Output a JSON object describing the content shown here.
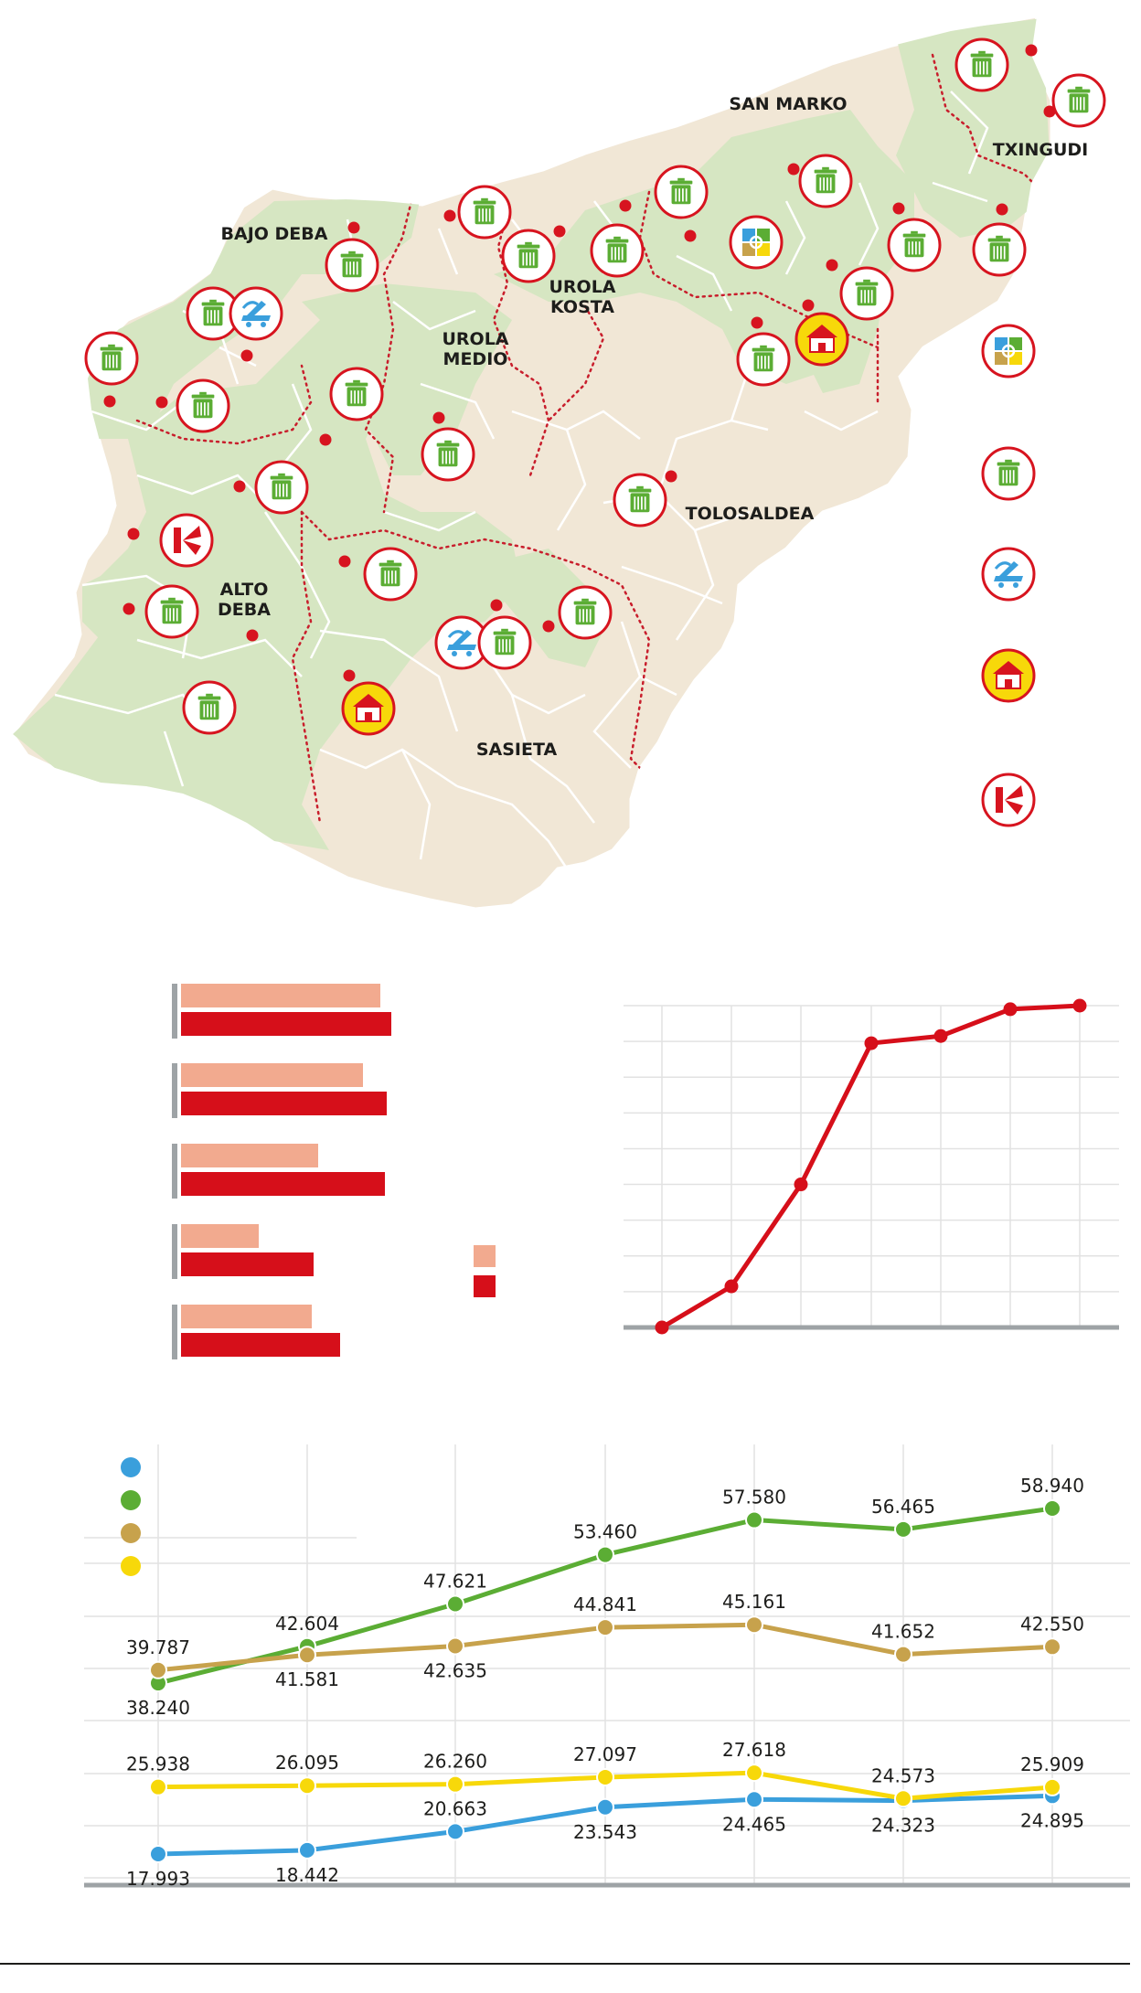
{
  "map": {
    "regions": [
      {
        "name": "SAN MARKO",
        "lines": [
          "SAN MARKO"
        ]
      },
      {
        "name": "TXINGUDI",
        "lines": [
          "TXINGUDI"
        ]
      },
      {
        "name": "BAJO DEBA",
        "lines": [
          "BAJO DEBA"
        ]
      },
      {
        "name": "UROLA KOSTA",
        "lines": [
          "UROLA",
          "KOSTA"
        ]
      },
      {
        "name": "UROLA MEDIO",
        "lines": [
          "UROLA",
          "MEDIO"
        ]
      },
      {
        "name": "TOLOSALDEA",
        "lines": [
          "TOLOSALDEA"
        ]
      },
      {
        "name": "ALTO DEBA",
        "lines": [
          "ALTO",
          "DEBA"
        ]
      },
      {
        "name": "SASIETA",
        "lines": [
          "SASIETA"
        ]
      }
    ],
    "colors": {
      "land": "#f1e7d6",
      "mancomunidad": "#d6e6c2",
      "border_dotted": "#c81e2c",
      "marker": "#d7141f"
    },
    "legend_icons": [
      "recycling-container-icon",
      "trash-bin-icon",
      "truck-icon",
      "treatment-plant-icon",
      "compost-leaf-icon"
    ]
  },
  "chart_data": [
    {
      "type": "bar",
      "categories": [
        "",
        "",
        "",
        "",
        ""
      ],
      "series": [
        {
          "values": [
            218,
            199,
            150,
            85,
            143
          ],
          "color": "#f2aa8f"
        },
        {
          "values": [
            230,
            225,
            223,
            145,
            174
          ],
          "color": "#d60f1a"
        }
      ],
      "legend_colors": [
        "#f2aa8f",
        "#d60f1a"
      ]
    },
    {
      "type": "line",
      "x": [
        1,
        2,
        3,
        4,
        5,
        6,
        7
      ],
      "series": [
        {
          "values": [
            0.0,
            11.5,
            40.0,
            79.5,
            81.5,
            89.0,
            90.0
          ],
          "color": "#d60f1a"
        }
      ],
      "ylim": [
        0,
        90
      ]
    },
    {
      "type": "line",
      "x": [
        1,
        2,
        3,
        4,
        5,
        6,
        7
      ],
      "series": [
        {
          "color": "#3a9fdc",
          "values": [
            17993,
            18442,
            20663,
            23543,
            24465,
            24323,
            24895
          ],
          "labels": [
            "17.993",
            "18.442",
            "20.663",
            "23.543",
            "24.465",
            "24.323",
            "24.895"
          ]
        },
        {
          "color": "#5bad34",
          "values": [
            38240,
            42604,
            47621,
            53460,
            57580,
            56465,
            58940
          ],
          "labels": [
            "38.240",
            "42.604",
            "47.621",
            "53.460",
            "57.580",
            "56.465",
            "58.940"
          ]
        },
        {
          "color": "#c7a24c",
          "values": [
            39787,
            41581,
            42635,
            44841,
            45161,
            41652,
            42550
          ],
          "labels": [
            "39.787",
            "41.581",
            "42.635",
            "44.841",
            "45.161",
            "41.652",
            "42.550"
          ]
        },
        {
          "color": "#f7d80a",
          "values": [
            25938,
            26095,
            26260,
            27097,
            27618,
            24573,
            25909
          ],
          "labels": [
            "25.938",
            "26.095",
            "26.260",
            "27.097",
            "27.618",
            "24.573",
            "25.909"
          ]
        }
      ]
    }
  ]
}
